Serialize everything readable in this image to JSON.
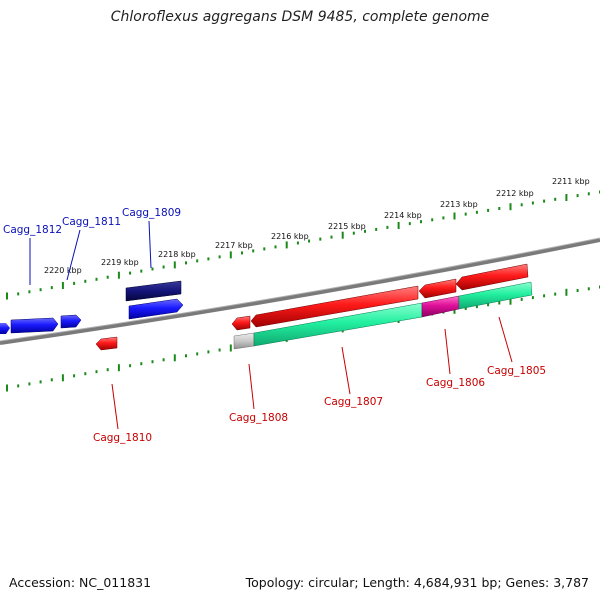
{
  "title": "Chloroflexus aggregans DSM 9485, complete genome",
  "footer": {
    "accession": "Accession: NC_011831",
    "topology": "Topology: circular; Length: 4,684,931 bp; Genes: 3,787"
  },
  "scale_labels": [
    "2211 kbp",
    "2212 kbp",
    "2213 kbp",
    "2214 kbp",
    "2215 kbp",
    "2216 kbp",
    "2217 kbp",
    "2218 kbp",
    "2219 kbp",
    "2220 kbp"
  ],
  "genes": [
    {
      "label": "Cagg_1812",
      "color": "#0a10b8"
    },
    {
      "label": "Cagg_1811",
      "color": "#0a10b8"
    },
    {
      "label": "Cagg_1809",
      "color": "#0a10b8"
    },
    {
      "label": "Cagg_1810",
      "color": "#c80000"
    },
    {
      "label": "Cagg_1808",
      "color": "#c80000"
    },
    {
      "label": "Cagg_1807",
      "color": "#c80000"
    },
    {
      "label": "Cagg_1806",
      "color": "#c80000"
    },
    {
      "label": "Cagg_1805",
      "color": "#c80000"
    }
  ],
  "colors": {
    "forward_gene": "#1a1aff",
    "forward_gene_dark": "#14147a",
    "reverse_gene": "#ff1a1a",
    "feature_green": "#22f0a0",
    "feature_magenta": "#e0109a",
    "feature_grey": "#c8c8c8",
    "backbone": "#808080",
    "ticks": "#1a8a1a"
  }
}
